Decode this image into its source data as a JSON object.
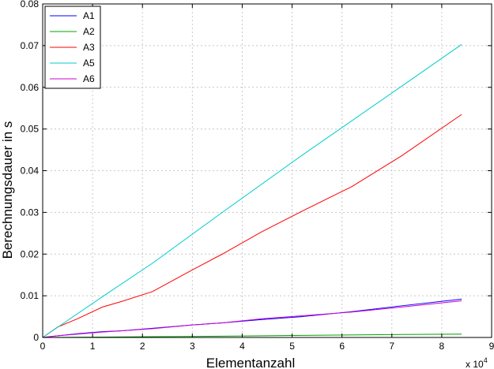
{
  "chart_data": {
    "type": "line",
    "xlabel": "Elementanzahl",
    "ylabel": "Berechnungsdauer in s",
    "x_exponent_label": "x 10",
    "x_exponent": "4",
    "xlim": [
      0,
      90000
    ],
    "ylim": [
      0,
      0.08
    ],
    "grid": true,
    "legend_position": "top-left",
    "x_ticks": [
      0,
      10000,
      20000,
      30000,
      40000,
      50000,
      60000,
      70000,
      80000,
      90000
    ],
    "x_tick_labels": [
      "0",
      "1",
      "2",
      "3",
      "4",
      "5",
      "6",
      "7",
      "8",
      "9"
    ],
    "y_ticks": [
      0,
      0.01,
      0.02,
      0.03,
      0.04,
      0.05,
      0.06,
      0.07,
      0.08
    ],
    "y_tick_labels": [
      "0",
      "0.01",
      "0.02",
      "0.03",
      "0.04",
      "0.05",
      "0.06",
      "0.07",
      "0.08"
    ],
    "series": [
      {
        "name": "A1",
        "color": "#0000ff",
        "x": [
          0,
          3000,
          7000,
          12000,
          16000,
          22000,
          30000,
          36000,
          44000,
          52000,
          62000,
          72000,
          84000
        ],
        "y": [
          0,
          0.0004,
          0.0009,
          0.0014,
          0.0016,
          0.0022,
          0.003,
          0.0035,
          0.0043,
          0.005,
          0.0062,
          0.0076,
          0.0092
        ]
      },
      {
        "name": "A2",
        "color": "#00a000",
        "x": [
          0,
          12000,
          22000,
          36000,
          52000,
          72000,
          84000
        ],
        "y": [
          0,
          0.0001,
          0.0002,
          0.0003,
          0.0005,
          0.0007,
          0.0008
        ]
      },
      {
        "name": "A3",
        "color": "#ff0000",
        "x": [
          0,
          3000,
          7000,
          12000,
          16000,
          22000,
          30000,
          36000,
          44000,
          52000,
          62000,
          72000,
          84000
        ],
        "y": [
          0,
          0.0025,
          0.0045,
          0.0073,
          0.0087,
          0.011,
          0.0162,
          0.02,
          0.0254,
          0.0303,
          0.0362,
          0.0436,
          0.0535
        ]
      },
      {
        "name": "A5",
        "color": "#00cccc",
        "x": [
          0,
          12000,
          22000,
          36000,
          52000,
          72000,
          84000
        ],
        "y": [
          0,
          0.0098,
          0.0178,
          0.03,
          0.0437,
          0.0603,
          0.0703
        ]
      },
      {
        "name": "A6",
        "color": "#cc00cc",
        "x": [
          0,
          3000,
          7000,
          12000,
          16000,
          22000,
          30000,
          36000,
          44000,
          52000,
          62000,
          72000,
          84000
        ],
        "y": [
          0,
          0.0004,
          0.0008,
          0.0013,
          0.0016,
          0.0021,
          0.003,
          0.0035,
          0.0045,
          0.0052,
          0.0061,
          0.0073,
          0.0088
        ]
      }
    ]
  }
}
